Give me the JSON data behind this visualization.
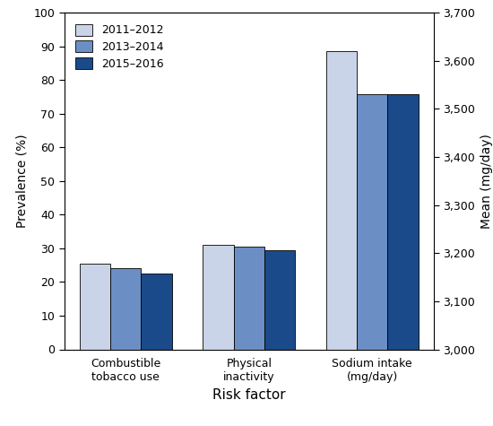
{
  "categories": [
    "Combustible\ntobacco use",
    "Physical\ninactivity",
    "Sodium intake\n(mg/day)"
  ],
  "series": {
    "2011–2012": [
      25.5,
      31.0,
      88.6
    ],
    "2013–2014": [
      24.0,
      30.5,
      75.7
    ],
    "2015–2016": [
      22.5,
      29.5,
      75.7
    ]
  },
  "colors": {
    "2011–2012": "#c9d4e8",
    "2013–2014": "#6b8ec4",
    "2015–2016": "#1a4a8a"
  },
  "left_ylim": [
    0,
    100
  ],
  "left_yticks": [
    0,
    10,
    20,
    30,
    40,
    50,
    60,
    70,
    80,
    90,
    100
  ],
  "left_ylabel": "Prevalence (%)",
  "right_ylim": [
    3000,
    3700
  ],
  "right_yticks": [
    3000,
    3100,
    3200,
    3300,
    3400,
    3500,
    3600,
    3700
  ],
  "right_ylabel": "Mean (mg/day)",
  "xlabel": "Risk factor",
  "legend_labels": [
    "2011–2012",
    "2013–2014",
    "2015–2016"
  ],
  "bar_width": 0.25,
  "background_color": "#ffffff"
}
